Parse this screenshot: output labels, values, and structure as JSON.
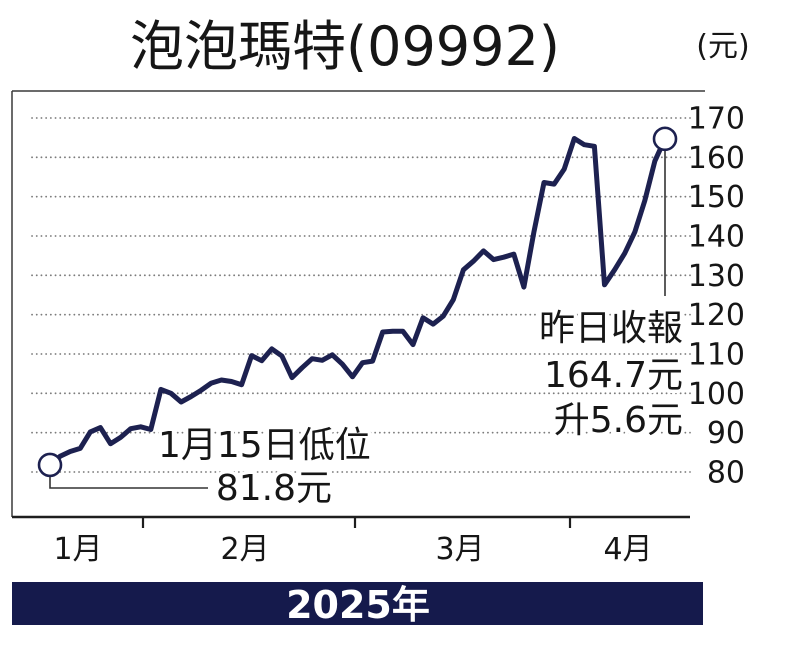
{
  "chart_data": {
    "type": "line",
    "title": "泡泡瑪特(09992)",
    "ylabel": "(元)",
    "xlabel": "2025年",
    "x_tick_labels": [
      "1月",
      "2月",
      "3月",
      "4月"
    ],
    "y_ticks": [
      80,
      90,
      100,
      110,
      120,
      130,
      140,
      150,
      160,
      170
    ],
    "ylim": [
      80,
      170
    ],
    "grid": true,
    "series": [
      {
        "values": [
          81.8,
          84.0,
          85.2,
          86.0,
          90.2,
          91.3,
          87.2,
          88.8,
          91.0,
          91.5,
          90.8,
          101.0,
          100.0,
          97.8,
          99.2,
          100.8,
          102.6,
          103.4,
          103.0,
          102.2,
          109.6,
          108.3,
          111.3,
          109.5,
          104.0,
          106.5,
          108.8,
          108.4,
          109.8,
          107.4,
          104.2,
          107.8,
          108.2,
          115.6,
          115.8,
          115.8,
          112.4,
          119.2,
          117.6,
          119.6,
          123.8,
          131.4,
          133.6,
          136.2,
          134.0,
          134.6,
          135.4,
          127.0,
          141.0,
          153.6,
          153.2,
          157.0,
          164.8,
          163.2,
          162.8,
          127.6,
          131.4,
          135.6,
          141.0,
          149.0,
          159.1,
          164.7
        ]
      }
    ],
    "annotations": {
      "low": {
        "label": "1月15日低位",
        "price": "81.8元"
      },
      "close": {
        "label": "昨日收報",
        "price": "164.7元",
        "change": "升5.6元"
      }
    }
  },
  "colors": {
    "line": "#1d2150",
    "banner": "#151a4c",
    "text": "#161616"
  }
}
